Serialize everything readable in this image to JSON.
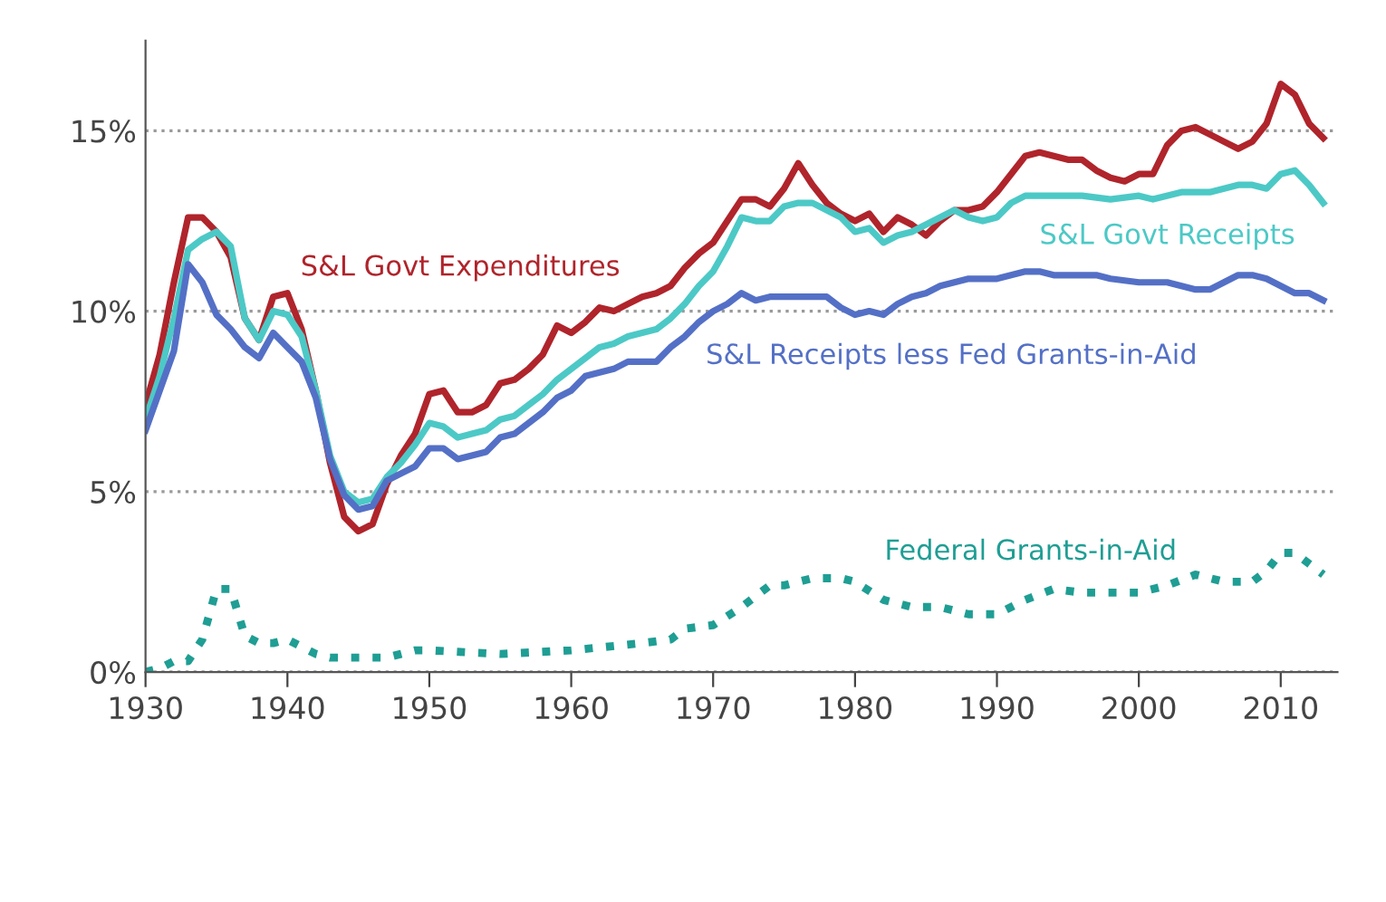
{
  "chart_data": {
    "type": "line",
    "xlim": [
      1930,
      2014
    ],
    "ylim": [
      0,
      17.5
    ],
    "xticks": [
      1930,
      1940,
      1950,
      1960,
      1970,
      1980,
      1990,
      2000,
      2010
    ],
    "yticks": [
      {
        "value": 0,
        "label": "0%"
      },
      {
        "value": 5,
        "label": "5%"
      },
      {
        "value": 10,
        "label": "10%"
      },
      {
        "value": 15,
        "label": "15%"
      }
    ],
    "grid": "y",
    "legend": false,
    "series": [
      {
        "name": "S&L Govt Expenditures",
        "color": "#b0242b",
        "line_style": "solid",
        "x": [
          1930,
          1931,
          1932,
          1933,
          1934,
          1935,
          1936,
          1937,
          1938,
          1939,
          1940,
          1941,
          1942,
          1943,
          1944,
          1945,
          1946,
          1947,
          1948,
          1949,
          1950,
          1951,
          1952,
          1953,
          1954,
          1955,
          1956,
          1957,
          1958,
          1959,
          1960,
          1961,
          1962,
          1963,
          1964,
          1965,
          1966,
          1967,
          1968,
          1969,
          1970,
          1971,
          1972,
          1973,
          1974,
          1975,
          1976,
          1977,
          1978,
          1979,
          1980,
          1981,
          1982,
          1983,
          1984,
          1985,
          1986,
          1987,
          1988,
          1989,
          1990,
          1991,
          1992,
          1993,
          1994,
          1995,
          1996,
          1997,
          1998,
          1999,
          2000,
          2001,
          2002,
          2003,
          2004,
          2005,
          2006,
          2007,
          2008,
          2009,
          2010,
          2011,
          2012,
          2013
        ],
        "values": [
          7.4,
          8.8,
          10.8,
          12.6,
          12.6,
          12.2,
          11.5,
          9.8,
          9.2,
          10.4,
          10.5,
          9.5,
          7.8,
          5.8,
          4.3,
          3.9,
          4.1,
          5.2,
          6.0,
          6.6,
          7.7,
          7.8,
          7.2,
          7.2,
          7.4,
          8.0,
          8.1,
          8.4,
          8.8,
          9.6,
          9.4,
          9.7,
          10.1,
          10.0,
          10.2,
          10.4,
          10.5,
          10.7,
          11.2,
          11.6,
          11.9,
          12.5,
          13.1,
          13.1,
          12.9,
          13.4,
          14.1,
          13.5,
          13.0,
          12.7,
          12.5,
          12.7,
          12.2,
          12.6,
          12.4,
          12.1,
          12.5,
          12.8,
          12.8,
          12.9,
          13.3,
          13.8,
          14.3,
          14.4,
          14.3,
          14.2,
          14.2,
          13.9,
          13.7,
          13.6,
          13.8,
          13.8,
          14.6,
          15.0,
          15.1,
          14.9,
          14.7,
          14.5,
          14.7,
          15.2,
          16.3,
          16.0,
          15.2,
          14.8
        ]
      },
      {
        "name": "S&L Govt Receipts",
        "color": "#4cc9c6",
        "line_style": "solid",
        "x": [
          1930,
          1931,
          1932,
          1933,
          1934,
          1935,
          1936,
          1937,
          1938,
          1939,
          1940,
          1941,
          1942,
          1943,
          1944,
          1945,
          1946,
          1947,
          1948,
          1949,
          1950,
          1951,
          1952,
          1953,
          1954,
          1955,
          1956,
          1957,
          1958,
          1959,
          1960,
          1961,
          1962,
          1963,
          1964,
          1965,
          1966,
          1967,
          1968,
          1969,
          1970,
          1971,
          1972,
          1973,
          1974,
          1975,
          1976,
          1977,
          1978,
          1979,
          1980,
          1981,
          1982,
          1983,
          1984,
          1985,
          1986,
          1987,
          1988,
          1989,
          1990,
          1991,
          1992,
          1994,
          1996,
          1998,
          2000,
          2001,
          2003,
          2005,
          2007,
          2008,
          2009,
          2010,
          2011,
          2012,
          2013
        ],
        "values": [
          7.0,
          8.2,
          9.8,
          11.7,
          12.0,
          12.2,
          11.8,
          9.8,
          9.2,
          10.0,
          9.9,
          9.3,
          7.8,
          6.0,
          5.0,
          4.7,
          4.8,
          5.4,
          5.8,
          6.3,
          6.9,
          6.8,
          6.5,
          6.6,
          6.7,
          7.0,
          7.1,
          7.4,
          7.7,
          8.1,
          8.4,
          8.7,
          9.0,
          9.1,
          9.3,
          9.4,
          9.5,
          9.8,
          10.2,
          10.7,
          11.1,
          11.8,
          12.6,
          12.5,
          12.5,
          12.9,
          13.0,
          13.0,
          12.8,
          12.6,
          12.2,
          12.3,
          11.9,
          12.1,
          12.2,
          12.4,
          12.6,
          12.8,
          12.6,
          12.5,
          12.6,
          13.0,
          13.2,
          13.2,
          13.2,
          13.1,
          13.2,
          13.1,
          13.3,
          13.3,
          13.5,
          13.5,
          13.4,
          13.8,
          13.9,
          13.5,
          13.0
        ]
      },
      {
        "name": "S&L Receipts less Fed Grants-in-Aid",
        "color": "#5470c6",
        "line_style": "solid",
        "x": [
          1930,
          1931,
          1932,
          1933,
          1934,
          1935,
          1936,
          1937,
          1938,
          1939,
          1940,
          1941,
          1942,
          1943,
          1944,
          1945,
          1946,
          1947,
          1948,
          1949,
          1950,
          1951,
          1952,
          1953,
          1954,
          1955,
          1956,
          1957,
          1958,
          1959,
          1960,
          1961,
          1962,
          1963,
          1964,
          1965,
          1966,
          1967,
          1968,
          1969,
          1970,
          1971,
          1972,
          1973,
          1974,
          1975,
          1976,
          1977,
          1978,
          1979,
          1980,
          1981,
          1982,
          1983,
          1984,
          1985,
          1986,
          1987,
          1988,
          1989,
          1990,
          1991,
          1992,
          1993,
          1994,
          1995,
          1996,
          1997,
          1998,
          2000,
          2002,
          2004,
          2005,
          2006,
          2007,
          2008,
          2009,
          2010,
          2011,
          2012,
          2013
        ],
        "values": [
          6.7,
          7.8,
          8.9,
          11.3,
          10.8,
          9.9,
          9.5,
          9.0,
          8.7,
          9.4,
          9.0,
          8.6,
          7.6,
          5.9,
          4.9,
          4.5,
          4.6,
          5.3,
          5.5,
          5.7,
          6.2,
          6.2,
          5.9,
          6.0,
          6.1,
          6.5,
          6.6,
          6.9,
          7.2,
          7.6,
          7.8,
          8.2,
          8.3,
          8.4,
          8.6,
          8.6,
          8.6,
          9.0,
          9.3,
          9.7,
          10.0,
          10.2,
          10.5,
          10.3,
          10.4,
          10.4,
          10.4,
          10.4,
          10.4,
          10.1,
          9.9,
          10.0,
          9.9,
          10.2,
          10.4,
          10.5,
          10.7,
          10.8,
          10.9,
          10.9,
          10.9,
          11.0,
          11.1,
          11.1,
          11.0,
          11.0,
          11.0,
          11.0,
          10.9,
          10.8,
          10.8,
          10.6,
          10.6,
          10.8,
          11.0,
          11.0,
          10.9,
          10.7,
          10.5,
          10.5,
          10.3
        ]
      },
      {
        "name": "Federal Grants-in-Aid",
        "color": "#1f9e94",
        "line_style": "dotted",
        "x": [
          1930,
          1931,
          1932,
          1933,
          1934,
          1935,
          1936,
          1937,
          1938,
          1939,
          1940,
          1941,
          1942,
          1943,
          1944,
          1945,
          1946,
          1947,
          1948,
          1949,
          1950,
          1955,
          1960,
          1965,
          1967,
          1968,
          1970,
          1972,
          1974,
          1975,
          1977,
          1979,
          1980,
          1982,
          1984,
          1986,
          1988,
          1990,
          1992,
          1994,
          1996,
          1998,
          2000,
          2002,
          2004,
          2006,
          2008,
          2009,
          2010,
          2011,
          2012,
          2013
        ],
        "values": [
          0.0,
          0.1,
          0.3,
          0.3,
          0.9,
          2.3,
          2.3,
          1.0,
          0.8,
          0.8,
          0.9,
          0.7,
          0.5,
          0.4,
          0.4,
          0.4,
          0.4,
          0.4,
          0.5,
          0.6,
          0.6,
          0.5,
          0.6,
          0.8,
          0.9,
          1.2,
          1.3,
          1.8,
          2.4,
          2.4,
          2.6,
          2.6,
          2.5,
          2.0,
          1.8,
          1.8,
          1.6,
          1.6,
          2.0,
          2.3,
          2.2,
          2.2,
          2.2,
          2.4,
          2.7,
          2.5,
          2.5,
          2.8,
          3.3,
          3.3,
          3.0,
          2.7
        ]
      }
    ]
  }
}
